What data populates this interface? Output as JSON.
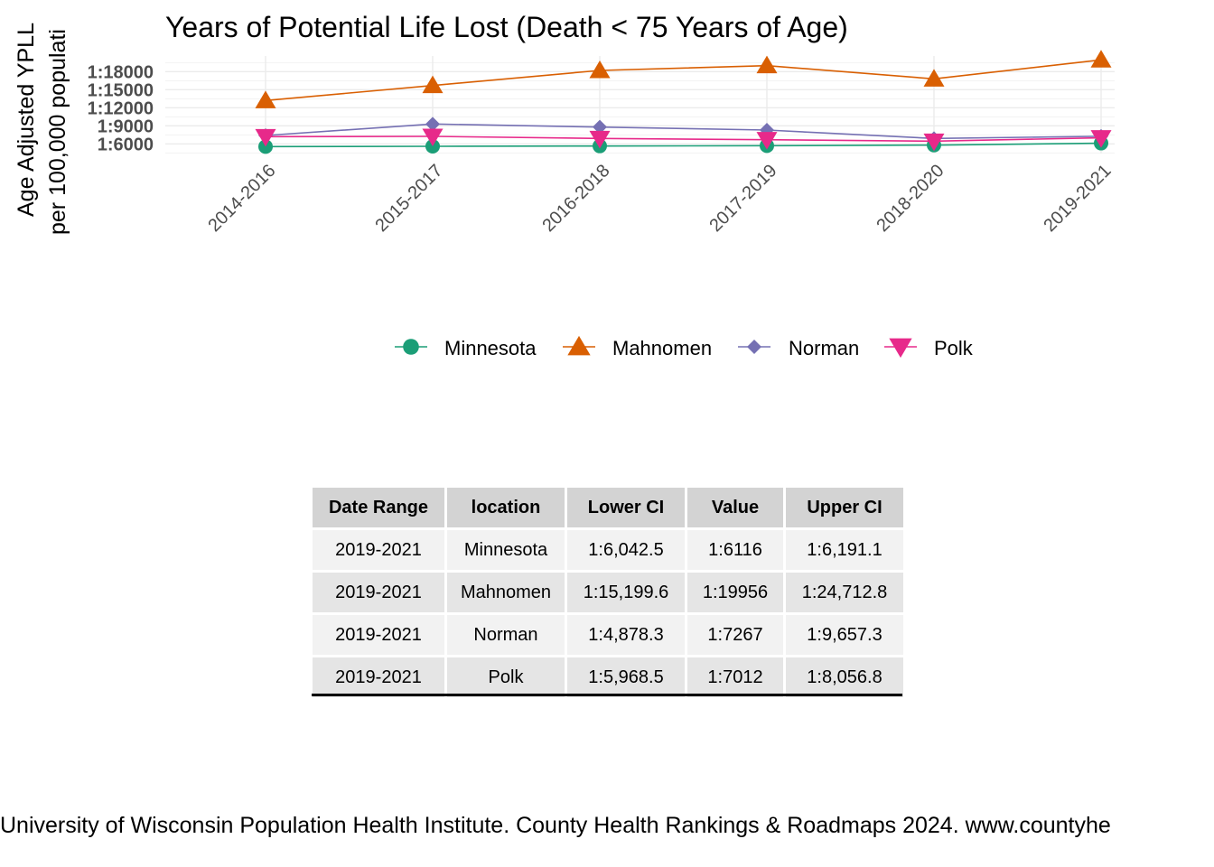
{
  "chart_data": {
    "type": "line",
    "title": "Years of Potential Life Lost (Death < 75 Years of Age)",
    "ylabel": [
      "Age Adjusted YPLL",
      "per 100,000 populati"
    ],
    "x": [
      "2014-2016",
      "2015-2017",
      "2016-2018",
      "2017-2019",
      "2018-2020",
      "2019-2021"
    ],
    "yticks": [
      6000,
      9000,
      12000,
      15000,
      18000
    ],
    "ytick_labels": [
      "1:6000",
      "1:9000",
      "1:12000",
      "1:15000",
      "1:18000"
    ],
    "ylim": [
      4400,
      20600
    ],
    "grid": true,
    "legend_position": "bottom",
    "series": [
      {
        "name": "Minnesota",
        "color": "#1b9e77",
        "marker": "circle",
        "values": [
          5550,
          5600,
          5650,
          5700,
          5800,
          6116
        ]
      },
      {
        "name": "Mahnomen",
        "color": "#d95f02",
        "marker": "triangle-up",
        "values": [
          13200,
          15700,
          18200,
          19000,
          16800,
          19956
        ]
      },
      {
        "name": "Norman",
        "color": "#7570b3",
        "marker": "diamond",
        "values": [
          7400,
          9300,
          8800,
          8300,
          6900,
          7267
        ]
      },
      {
        "name": "Polk",
        "color": "#e7298a",
        "marker": "triangle-down",
        "values": [
          7200,
          7250,
          6900,
          6700,
          6450,
          7012
        ]
      }
    ]
  },
  "table": {
    "headers": [
      "Date Range",
      "location",
      "Lower CI",
      "Value",
      "Upper CI"
    ],
    "rows": [
      [
        "2019-2021",
        "Minnesota",
        "1:6,042.5",
        "1:6116",
        "1:6,191.1"
      ],
      [
        "2019-2021",
        "Mahnomen",
        "1:15,199.6",
        "1:19956",
        "1:24,712.8"
      ],
      [
        "2019-2021",
        "Norman",
        "1:4,878.3",
        "1:7267",
        "1:9,657.3"
      ],
      [
        "2019-2021",
        "Polk",
        "1:5,968.5",
        "1:7012",
        "1:8,056.8"
      ]
    ]
  },
  "source_note": "University of Wisconsin Population Health Institute. County Health Rankings & Roadmaps 2024. www.countyhe"
}
